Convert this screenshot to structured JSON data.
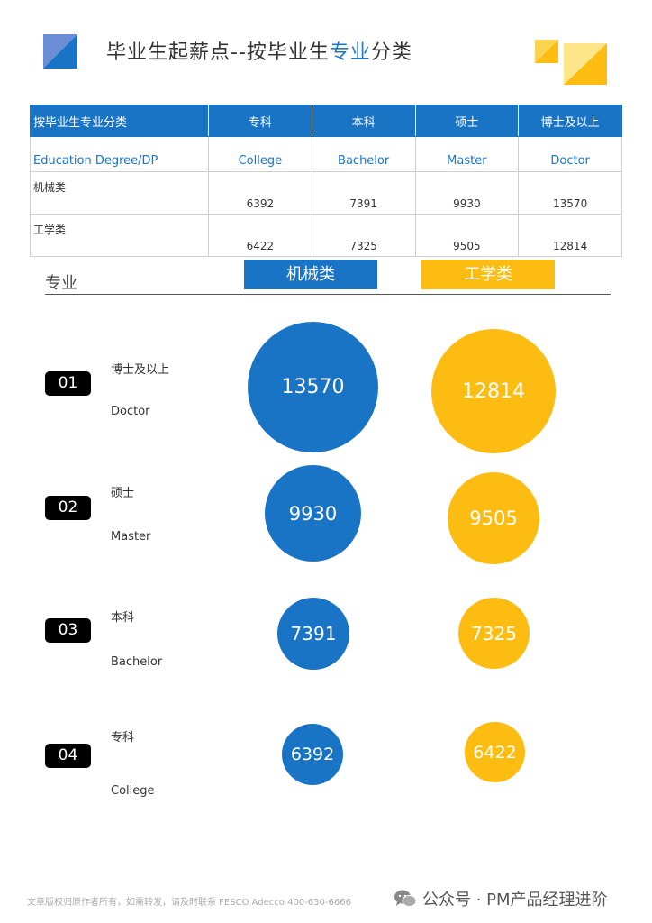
{
  "header": {
    "title_pre": "毕业生起薪点--按毕业生",
    "title_highlight": "专业",
    "title_post": "分类"
  },
  "table": {
    "headers": [
      "按毕业生专业分类",
      "专科",
      "本科",
      "硕士",
      "博士及以上"
    ],
    "english": [
      "Education  Degree/DP",
      "College",
      "Bachelor",
      "Master",
      "Doctor"
    ],
    "rows": [
      {
        "name": "机械类",
        "values": [
          "6392",
          "7391",
          "9930",
          "13570"
        ]
      },
      {
        "name": "工学类",
        "values": [
          "6422",
          "7325",
          "9505",
          "12814"
        ]
      }
    ]
  },
  "legend": {
    "major_label": "专业",
    "series_a": "机械类",
    "series_b": "工学类"
  },
  "rows": [
    {
      "badge": "01",
      "cn": "博士及以上",
      "en": "Doctor",
      "a": "13570",
      "b": "12814"
    },
    {
      "badge": "02",
      "cn": "硕士",
      "en": "Master",
      "a": "9930",
      "b": "9505"
    },
    {
      "badge": "03",
      "cn": "本科",
      "en": "Bachelor",
      "a": "7391",
      "b": "7325"
    },
    {
      "badge": "04",
      "cn": "专科",
      "en": "College",
      "a": "6392",
      "b": "6422"
    }
  ],
  "colors": {
    "blue": "#1a74c6",
    "yellow": "#fcbc12"
  },
  "footer": {
    "left": "文章版权归原作者所有，如需转发，请及时联系 FESCO Adecco 400-630-6666",
    "right": "公众号 · PM产品经理进阶",
    "icon": "wechat-icon"
  }
}
